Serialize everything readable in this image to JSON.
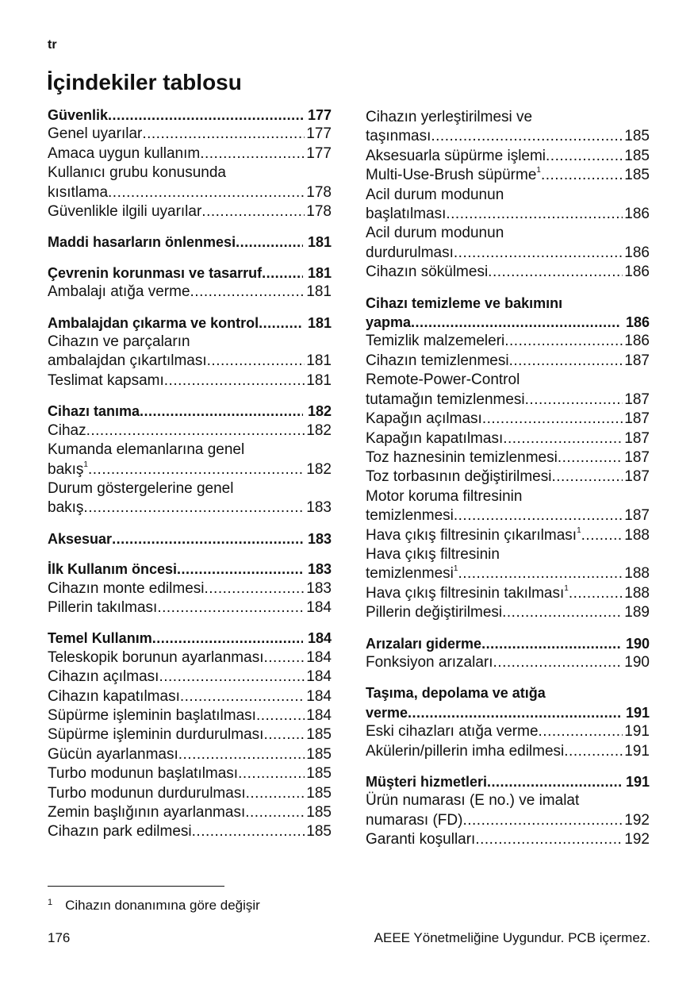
{
  "header": {
    "lang": "tr",
    "title": "İçindekiler tablosu"
  },
  "columns": [
    [
      [
        {
          "t": "Güvenlik",
          "p": "177",
          "b": true
        },
        {
          "t": "Genel uyarılar ",
          "p": "177"
        },
        {
          "t": "Amaca uygun kullanım",
          "p": "177"
        },
        {
          "t1": "Kullanıcı grubu konusunda",
          "t": "kısıtlama ",
          "p": "178"
        },
        {
          "t": "Güvenlikle ilgili uyarılar",
          "p": "178"
        }
      ],
      [
        {
          "t": "Maddi hasarların önlenmesi ",
          "p": "181",
          "b": true
        }
      ],
      [
        {
          "t": "Çevrenin korunması ve tasarruf",
          "p": "181",
          "b": true
        },
        {
          "t": "Ambalajı atığa verme ",
          "p": "181"
        }
      ],
      [
        {
          "t": "Ambalajdan çıkarma ve kontrol ",
          "p": "181",
          "b": true
        },
        {
          "t1": "Cihazın ve parçaların",
          "t": "ambalajdan çıkartılması",
          "p": "181"
        },
        {
          "t": "Teslimat kapsamı ",
          "p": "181"
        }
      ],
      [
        {
          "t": "Cihazı tanıma",
          "p": "182",
          "b": true
        },
        {
          "t": "Cihaz",
          "p": "182"
        },
        {
          "t1": "Kumanda elemanlarına genel",
          "t": "bakış",
          "sup": "1",
          "p": "182"
        },
        {
          "t1": "Durum göstergelerine genel",
          "t": "bakış ",
          "p": "183"
        }
      ],
      [
        {
          "t": "Aksesuar",
          "p": "183",
          "b": true
        }
      ],
      [
        {
          "t": "İlk Kullanım öncesi",
          "p": "183",
          "b": true
        },
        {
          "t": "Cihazın monte edilmesi ",
          "p": "183"
        },
        {
          "t": "Pillerin takılması",
          "p": "184"
        }
      ],
      [
        {
          "t": "Temel Kullanım ",
          "p": "184",
          "b": true
        },
        {
          "t": "Teleskopik borunun ayarlanması ",
          "p": "184"
        },
        {
          "t": "Cihazın açılması ",
          "p": "184"
        },
        {
          "t": "Cihazın kapatılması ",
          "p": "184"
        },
        {
          "t": "Süpürme işleminin başlatılması",
          "p": "184"
        },
        {
          "t": "Süpürme işleminin durdurulması",
          "p": "185"
        },
        {
          "t": "Gücün ayarlanması ",
          "p": "185"
        },
        {
          "t": "Turbo modunun başlatılması",
          "p": "185"
        },
        {
          "t": "Turbo modunun durdurulması",
          "p": "185"
        },
        {
          "t": "Zemin başlığının ayarlanması",
          "p": "185"
        },
        {
          "t": "Cihazın park edilmesi",
          "p": "185"
        }
      ]
    ],
    [
      [
        {
          "t1": "Cihazın yerleştirilmesi ve",
          "t": "taşınması ",
          "p": "185"
        },
        {
          "t": "Aksesuarla süpürme işlemi",
          "p": "185"
        },
        {
          "t": "Multi-Use-Brush süpürme",
          "sup": "1",
          "p": "185"
        },
        {
          "t1": "Acil durum modunun",
          "t": "başlatılması",
          "p": "186"
        },
        {
          "t1": "Acil durum modunun",
          "t": "durdurulması ",
          "p": "186"
        },
        {
          "t": "Cihazın sökülmesi ",
          "p": "186"
        }
      ],
      [
        {
          "t1": "Cihazı temizleme ve bakımını",
          "t": "yapma ",
          "p": "186",
          "b": true
        },
        {
          "t": "Temizlik malzemeleri ",
          "p": "186"
        },
        {
          "t": "Cihazın temizlenmesi",
          "p": "187"
        },
        {
          "t1": "Remote-Power-Control",
          "t": "tutamağın temizlenmesi",
          "p": "187"
        },
        {
          "t": "Kapağın açılması",
          "p": "187"
        },
        {
          "t": "Kapağın kapatılması",
          "p": "187"
        },
        {
          "t": "Toz haznesinin temizlenmesi",
          "p": "187"
        },
        {
          "t": "Toz torbasının değiştirilmesi",
          "p": "187"
        },
        {
          "t1": "Motor koruma filtresinin",
          "t": "temizlenmesi",
          "p": "187"
        },
        {
          "t": "Hava çıkış filtresinin çıkarılması",
          "sup": "1",
          "p": "188"
        },
        {
          "t1": "Hava çıkış filtresinin",
          "t": "temizlenmesi",
          "sup": "1",
          "p": "188"
        },
        {
          "t": "Hava çıkış filtresinin takılması",
          "sup": "1",
          "p": "188"
        },
        {
          "t": "Pillerin değiştirilmesi",
          "p": "189"
        }
      ],
      [
        {
          "t": "Arızaları giderme",
          "p": "190",
          "b": true
        },
        {
          "t": "Fonksiyon arızaları",
          "p": "190"
        }
      ],
      [
        {
          "t1": "Taşıma, depolama ve atığa",
          "t": "verme ",
          "p": "191",
          "b": true
        },
        {
          "t": "Eski cihazları atığa verme ",
          "p": "191"
        },
        {
          "t": "Akülerin/pillerin imha edilmesi",
          "p": "191"
        }
      ],
      [
        {
          "t": "Müşteri hizmetleri",
          "p": "191",
          "b": true
        },
        {
          "t1": "Ürün numarası (E no.) ve imalat",
          "t": "numarası (FD) ",
          "p": "192"
        },
        {
          "t": "Garanti koşulları ",
          "p": "192"
        }
      ]
    ]
  ],
  "footnote": {
    "number": "1",
    "text": "Cihazın donanımına göre değişir"
  },
  "footer": {
    "page": "176",
    "note": "AEEE Yönetmeliğine Uygundur. PCB içermez."
  }
}
